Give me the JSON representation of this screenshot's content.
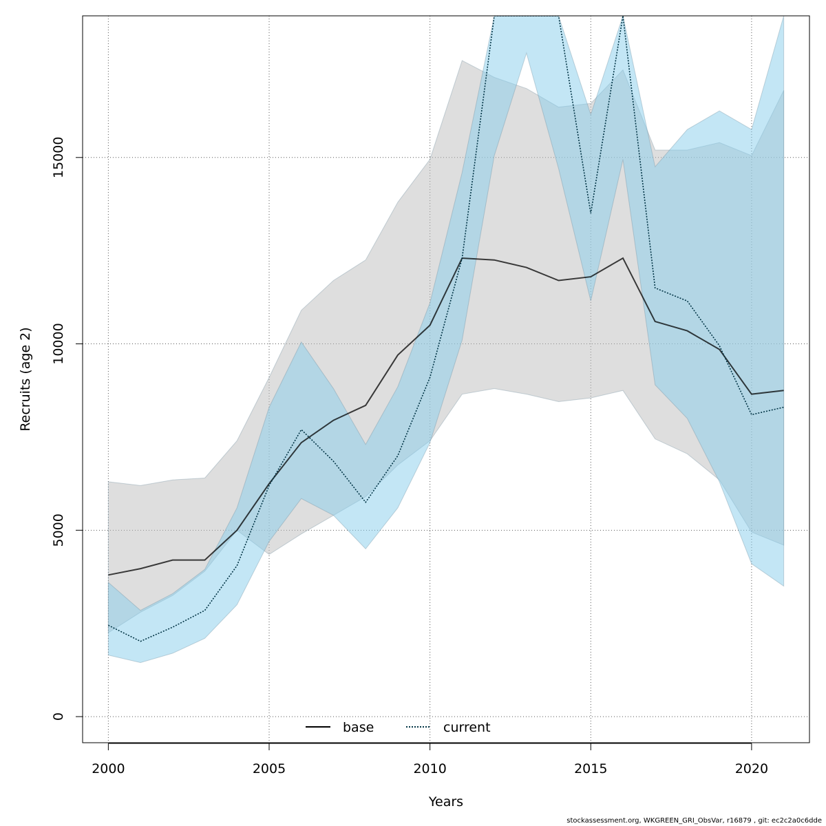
{
  "chart_data": {
    "type": "line",
    "xlabel": "Years",
    "ylabel": "Recruits (age 2)",
    "xlim": [
      1999.2,
      2021.8
    ],
    "ylim": [
      -700,
      18800
    ],
    "x_ticks": [
      2000,
      2005,
      2010,
      2015,
      2020
    ],
    "y_ticks": [
      0,
      5000,
      10000,
      15000
    ],
    "grid": true,
    "legend_position": "bottom-center",
    "x": [
      2000,
      2001,
      2002,
      2003,
      2004,
      2005,
      2006,
      2007,
      2008,
      2009,
      2010,
      2011,
      2012,
      2013,
      2014,
      2015,
      2016,
      2017,
      2018,
      2019,
      2020,
      2021
    ],
    "series": [
      {
        "name": "base",
        "line_style": "solid",
        "color": "#000000",
        "band_color": "#bebebe",
        "values": [
          3800,
          3970,
          4200,
          4200,
          5000,
          6250,
          7350,
          7950,
          8350,
          9700,
          10500,
          12300,
          12250,
          12050,
          11700,
          11800,
          12300,
          10600,
          10350,
          9850,
          8650,
          8750
        ],
        "lower": [
          2250,
          2800,
          3250,
          3900,
          5000,
          4350,
          4900,
          5400,
          5900,
          6750,
          7400,
          8650,
          8800,
          8650,
          8450,
          8550,
          8750,
          7450,
          7050,
          6350,
          4950,
          4600
        ],
        "upper": [
          6300,
          6200,
          6350,
          6400,
          7400,
          9100,
          10900,
          11700,
          12250,
          13800,
          14950,
          17600,
          17150,
          16850,
          16350,
          16450,
          17350,
          15200,
          15200,
          15400,
          15050,
          16800
        ]
      },
      {
        "name": "current",
        "line_style": "dotted",
        "color": "#003344",
        "band_color": "#87ceeb",
        "values": [
          2450,
          2020,
          2400,
          2850,
          4050,
          6200,
          7700,
          6850,
          5750,
          7000,
          9100,
          12300,
          18800,
          18800,
          18800,
          13500,
          18800,
          11500,
          11150,
          9950,
          8100,
          8300
        ],
        "lower": [
          1650,
          1450,
          1700,
          2100,
          3000,
          4700,
          5850,
          5400,
          4500,
          5600,
          7350,
          10100,
          15050,
          17800,
          14700,
          11150,
          14950,
          8900,
          8000,
          6300,
          4100,
          3500
        ],
        "upper": [
          3600,
          2850,
          3300,
          3950,
          5600,
          8300,
          10050,
          8800,
          7300,
          8850,
          11100,
          14600,
          18800,
          18800,
          18800,
          16150,
          18800,
          14750,
          15750,
          16250,
          15750,
          18800
        ]
      }
    ]
  },
  "footer_text": "stockassessment.org, WKGREEN_GRI_ObsVar, r16879 , git: ec2c2a0c6dde"
}
